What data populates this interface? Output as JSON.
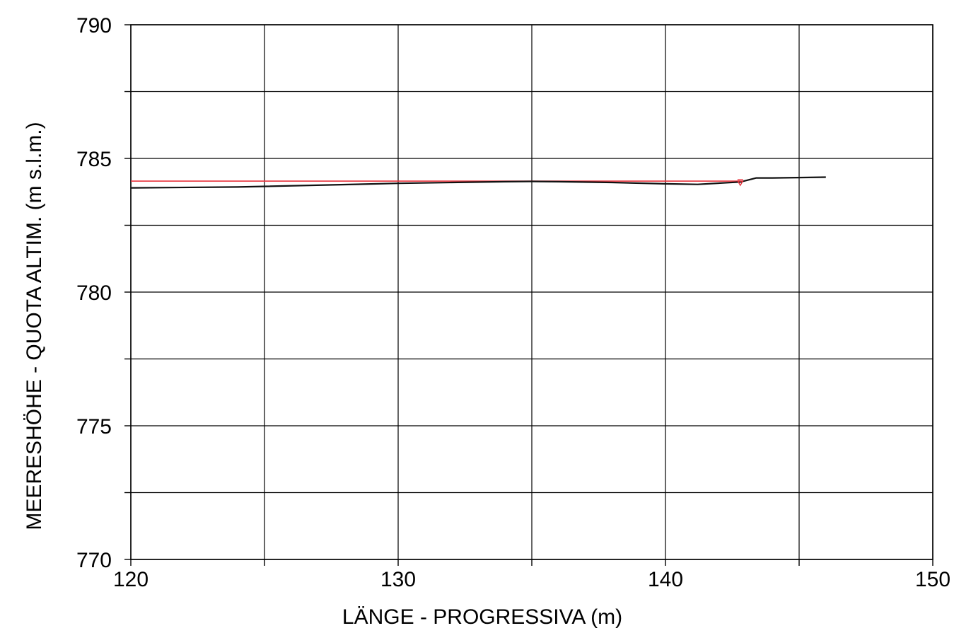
{
  "chart_data": {
    "type": "line",
    "xlabel": "LÄNGE - PROGRESSIVA  (m)",
    "ylabel": "MEERESHÖHE - QUOTA ALTIM.  (m s.l.m.)",
    "xlim": [
      120,
      150
    ],
    "ylim": [
      770,
      790
    ],
    "x_ticks": [
      "120",
      "130",
      "140",
      "150"
    ],
    "y_ticks": [
      "770",
      "775",
      "780",
      "785",
      "790"
    ],
    "x_grid": [
      120,
      125,
      130,
      135,
      140,
      145,
      150
    ],
    "y_grid": [
      770,
      772.5,
      775,
      777.5,
      780,
      782.5,
      785,
      787.5,
      790
    ],
    "grid": true,
    "series": [
      {
        "color": "#e8323c",
        "x": [
          120,
          142.8
        ],
        "y": [
          784.15,
          784.15
        ]
      },
      {
        "color": "#111111",
        "x": [
          120,
          124,
          128,
          130,
          132,
          134,
          135,
          136,
          138,
          140,
          141.2,
          142.8,
          143.4,
          144,
          146
        ],
        "y": [
          783.9,
          783.93,
          784.02,
          784.07,
          784.1,
          784.13,
          784.14,
          784.13,
          784.1,
          784.05,
          784.03,
          784.12,
          784.27,
          784.27,
          784.3
        ]
      }
    ],
    "markers": [
      {
        "type": "water-level-triangle",
        "x": 142.8,
        "y": 784.15,
        "color": "#e8323c"
      }
    ]
  }
}
